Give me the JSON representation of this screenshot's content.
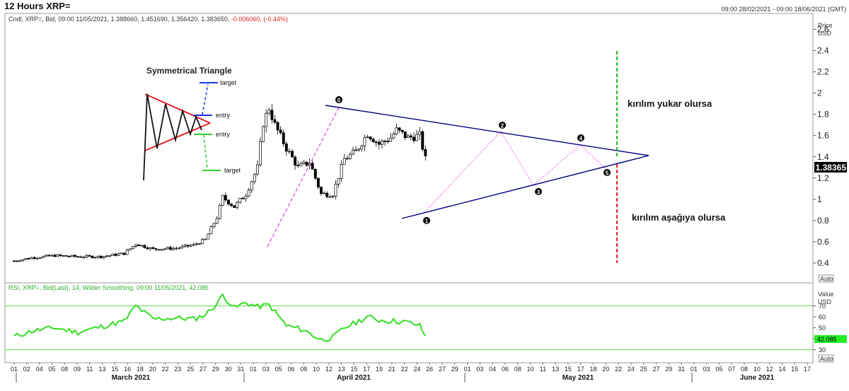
{
  "window": {
    "title": "12 Hours XRP=",
    "date_range": "09:00 28/02/2021 - 09:00 18/06/2021 (GMT)"
  },
  "price_panel": {
    "legend_prefix": "Cndl, XRP=, Bid, 09:00 11/05/2021, 1.388660, 1.451690, 1.356420, 1.383650,",
    "legend_change": "-0.006060, (-0.44%)",
    "axis_title_1": "Price",
    "axis_title_2": "USD",
    "last_value_badge": "1.38365",
    "auto_label": "Auto"
  },
  "rsi_panel": {
    "legend": "RSI, XRP=, Bid(Last), 14, Wilder Smoothing, 09:00 11/05/2021, 42.085",
    "axis_title_1": "Value",
    "axis_title_2": "USD",
    "last_value_badge": "42.085",
    "auto_label": "Auto"
  },
  "annotations": {
    "breakout_up": "kırılım yukar olursa",
    "breakout_down": "kırılım aşağıya olursa",
    "points": [
      "0",
      "1",
      "2",
      "3",
      "4",
      "5"
    ]
  },
  "inset": {
    "title": "Symmetrical Triangle",
    "labels": [
      "target",
      "entry",
      "entry",
      "target"
    ]
  },
  "colors": {
    "price_line": "#000000",
    "triangle_line": "#000080",
    "pink_dashed": "#e050e0",
    "rsi_line": "#33dd22",
    "rsi_bands": "#66dd55",
    "breakout_up": "#22bb22",
    "breakout_down": "#dd2222",
    "change_text": "#dd2222",
    "rsi_legend": "#33aa33"
  },
  "chart_data": [
    {
      "type": "candlestick",
      "title": "12 Hours XRP=",
      "ylabel": "Price USD",
      "ylim": [
        0.3,
        2.65
      ],
      "y_ticks": [
        0.4,
        0.6,
        0.8,
        1,
        1.2,
        1.4,
        1.6,
        1.8,
        2,
        2.2,
        2.4,
        2.6
      ],
      "x_tick_labels": [
        "01",
        "02",
        "04",
        "05",
        "08",
        "09",
        "11",
        "13",
        "15",
        "16",
        "18",
        "20",
        "22",
        "23",
        "25",
        "27",
        "29",
        "30",
        "31",
        "01",
        "03",
        "05",
        "06",
        "08",
        "10",
        "12",
        "13",
        "15",
        "17",
        "19",
        "21",
        "22",
        "24",
        "26",
        "27",
        "29",
        "01",
        "03",
        "04",
        "06",
        "08",
        "10",
        "11",
        "13",
        "15",
        "17",
        "18",
        "20",
        "22",
        "24",
        "25",
        "27",
        "29",
        "31",
        "01",
        "03",
        "05",
        "07",
        "08",
        "10",
        "12",
        "14",
        "15",
        "17"
      ],
      "month_labels": [
        "March 2021",
        "April 2021",
        "May 2021",
        "June 2021"
      ],
      "series": [
        {
          "x": [
            "01 Mar",
            "04 Mar",
            "08 Mar",
            "12 Mar",
            "16 Mar",
            "20 Mar",
            "22 Mar",
            "25 Mar",
            "29 Mar",
            "01 Apr",
            "03 Apr",
            "05 Apr",
            "06 Apr",
            "08 Apr",
            "10 Apr",
            "12 Apr",
            "13 Apr",
            "14 Apr",
            "15 Apr",
            "17 Apr",
            "19 Apr",
            "21 Apr",
            "23 Apr",
            "25 Apr",
            "27 Apr",
            "29 Apr",
            "01 May",
            "03 May",
            "05 May",
            "06 May",
            "08 May",
            "10 May",
            "11 May"
          ],
          "values": [
            0.42,
            0.45,
            0.47,
            0.46,
            0.46,
            0.49,
            0.58,
            0.53,
            0.54,
            0.57,
            0.62,
            0.83,
            1.02,
            0.93,
            1.05,
            1.3,
            1.72,
            1.86,
            1.7,
            1.48,
            1.3,
            1.35,
            1.05,
            1.05,
            1.38,
            1.45,
            1.62,
            1.52,
            1.58,
            1.65,
            1.58,
            1.6,
            1.38
          ]
        }
      ],
      "annotations": {
        "upper_trendline": [
          [
            "14 Apr",
            2.0
          ],
          [
            "26 May",
            1.5
          ]
        ],
        "lower_trendline": [
          [
            "23 Apr",
            0.88
          ],
          [
            "26 May",
            1.5
          ]
        ],
        "breakout_level_up": 2.55,
        "breakout_level_down": 0.43
      }
    },
    {
      "type": "line",
      "title": "RSI, XRP=, Bid(Last), 14, Wilder Smoothing",
      "ylabel": "Value USD",
      "ylim": [
        22,
        82
      ],
      "y_ticks": [
        30,
        40,
        50,
        60,
        70
      ],
      "bands": [
        70,
        30
      ],
      "series": [
        {
          "x": [
            "01 Mar",
            "04 Mar",
            "08 Mar",
            "12 Mar",
            "16 Mar",
            "20 Mar",
            "22 Mar",
            "25 Mar",
            "29 Mar",
            "01 Apr",
            "03 Apr",
            "05 Apr",
            "06 Apr",
            "08 Apr",
            "10 Apr",
            "12 Apr",
            "14 Apr",
            "17 Apr",
            "20 Apr",
            "23 Apr",
            "25 Apr",
            "27 Apr",
            "29 Apr",
            "01 May",
            "03 May",
            "06 May",
            "08 May",
            "10 May",
            "11 May"
          ],
          "values": [
            42,
            47,
            50,
            46,
            51,
            56,
            70,
            58,
            59,
            58,
            62,
            72,
            80,
            68,
            73,
            69,
            71,
            52,
            48,
            39,
            41,
            50,
            55,
            60,
            57,
            56,
            55,
            52,
            42
          ]
        }
      ]
    }
  ]
}
